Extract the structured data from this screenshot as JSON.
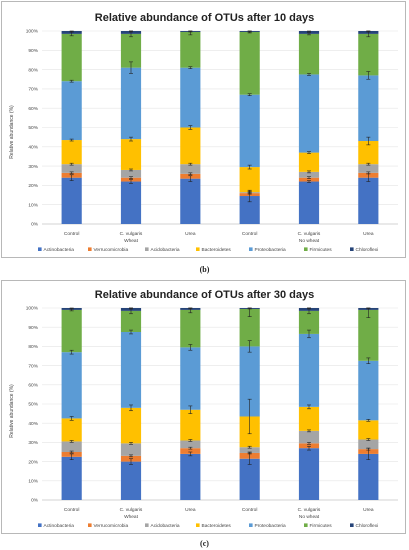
{
  "chart_data": [
    {
      "type": "bar",
      "stacked": true,
      "title": "Relative abundance of OTUs after 10 days",
      "ylabel": "Relative abundance (%)",
      "ylim": [
        0,
        100
      ],
      "yticks": [
        "0%",
        "10%",
        "20%",
        "30%",
        "40%",
        "50%",
        "60%",
        "70%",
        "80%",
        "90%",
        "100%"
      ],
      "categories": [
        "Control",
        "C. vulgaris",
        "Urea",
        "Control",
        "C. vulgaris",
        "Urea"
      ],
      "groups": [
        {
          "label": "Wheat",
          "span": [
            0,
            2
          ]
        },
        {
          "label": "No wheat",
          "span": [
            3,
            5
          ]
        }
      ],
      "legend_position": "bottom",
      "panel_label": "(b)",
      "series": [
        {
          "name": "Actinobacteria",
          "color": "#4472C4",
          "values": [
            24,
            22,
            23.5,
            14.5,
            22,
            24
          ],
          "errors": [
            1.5,
            1,
            1.5,
            3,
            0.5,
            2
          ]
        },
        {
          "name": "Verrucomicrobia",
          "color": "#ED7D31",
          "values": [
            2.5,
            2,
            2.5,
            1.5,
            2,
            2.5
          ],
          "errors": [
            0.5,
            0.5,
            0.5,
            0.5,
            0.5,
            0.5
          ]
        },
        {
          "name": "Acidobacteria",
          "color": "#A5A5A5",
          "values": [
            4.5,
            4,
            5,
            0.5,
            3,
            4.5
          ],
          "errors": [
            0.5,
            0.5,
            0.5,
            0.5,
            0.5,
            0.5
          ]
        },
        {
          "name": "Bacteroidetes",
          "color": "#FFC000",
          "values": [
            12.5,
            16,
            19,
            13,
            10,
            12
          ],
          "errors": [
            0.5,
            1,
            1,
            1,
            0.5,
            2
          ]
        },
        {
          "name": "Proteobacteria",
          "color": "#5B9BD5",
          "values": [
            30.5,
            37,
            31,
            37.5,
            40.5,
            34
          ],
          "errors": [
            0.5,
            3,
            0.5,
            0.5,
            0.5,
            2
          ]
        },
        {
          "name": "Firmicutes",
          "color": "#70AD47",
          "values": [
            24.5,
            17.5,
            18.5,
            32.5,
            21,
            21.5
          ],
          "errors": [
            1,
            1.5,
            1.5,
            0.5,
            0.5,
            1.5
          ]
        },
        {
          "name": "Chloroflexi",
          "color": "#264478",
          "values": [
            1.5,
            1.5,
            0.5,
            0.5,
            1.5,
            1.5
          ],
          "errors": [
            0.5,
            0.5,
            0.5,
            0.5,
            0.5,
            0.5
          ]
        }
      ]
    },
    {
      "type": "bar",
      "stacked": true,
      "title": "Relative abundance of OTUs after 30 days",
      "ylabel": "Relative abundance (%)",
      "ylim": [
        0,
        100
      ],
      "yticks": [
        "0%",
        "10%",
        "20%",
        "30%",
        "40%",
        "50%",
        "60%",
        "70%",
        "80%",
        "90%",
        "100%"
      ],
      "categories": [
        "Control",
        "C. vulgaris",
        "Urea",
        "Control",
        "C. vulgaris",
        "Urea"
      ],
      "groups": [
        {
          "label": "Wheat",
          "span": [
            0,
            2
          ]
        },
        {
          "label": "No wheat",
          "span": [
            3,
            5
          ]
        }
      ],
      "legend_position": "bottom",
      "panel_label": "(c)",
      "series": [
        {
          "name": "Actinobacteria",
          "color": "#4472C4",
          "values": [
            22.5,
            20,
            24,
            21.5,
            27,
            24
          ],
          "errors": [
            1.5,
            1.5,
            1,
            3,
            1,
            3
          ]
        },
        {
          "name": "Verrucomicrobia",
          "color": "#ED7D31",
          "values": [
            2.5,
            3,
            3,
            3,
            2.5,
            2.5
          ],
          "errors": [
            0.5,
            0.5,
            0.5,
            0.5,
            0.5,
            0.5
          ]
        },
        {
          "name": "Acidobacteria",
          "color": "#A5A5A5",
          "values": [
            5.5,
            6.5,
            4,
            3,
            6.5,
            5
          ],
          "errors": [
            0.5,
            0.5,
            0.5,
            0.5,
            0.5,
            0.5
          ]
        },
        {
          "name": "Bacteroidetes",
          "color": "#FFC000",
          "values": [
            12,
            18.5,
            16,
            16,
            12.5,
            10
          ],
          "errors": [
            1,
            1.5,
            2,
            9,
            1,
            0.5
          ]
        },
        {
          "name": "Proteobacteria",
          "color": "#5B9BD5",
          "values": [
            34.5,
            39.5,
            32.5,
            36.5,
            38,
            31
          ],
          "errors": [
            1,
            1,
            1.5,
            3,
            2,
            1.5
          ]
        },
        {
          "name": "Firmicutes",
          "color": "#70AD47",
          "values": [
            22,
            11,
            19.5,
            19.5,
            12,
            26.5
          ],
          "errors": [
            0.5,
            1.5,
            1.5,
            4,
            1.5,
            4
          ]
        },
        {
          "name": "Chloroflexi",
          "color": "#264478",
          "values": [
            1,
            1.5,
            1,
            0.5,
            1.5,
            1
          ],
          "errors": [
            0.5,
            0.5,
            0.5,
            0.5,
            0.5,
            0.5
          ]
        }
      ]
    }
  ]
}
